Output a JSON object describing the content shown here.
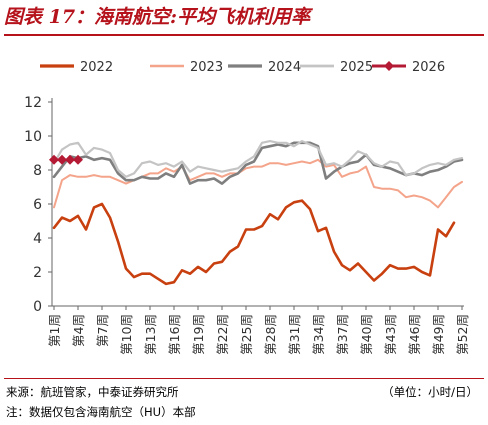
{
  "title": "图表 17：海南航空:平均飞机利用率",
  "source": "来源：航班管家，中泰证券研究所",
  "unit": "（单位：小时/日）",
  "note": "注：数据仅包含海南航空（HU）本部",
  "chart_data": {
    "type": "line",
    "ylim": [
      0,
      12
    ],
    "yticks": [
      0,
      2,
      4,
      6,
      8,
      10,
      12
    ],
    "week_count": 52,
    "xtick_weeks": [
      1,
      4,
      7,
      10,
      13,
      16,
      19,
      22,
      25,
      28,
      31,
      34,
      37,
      40,
      43,
      46,
      49,
      52
    ],
    "xtick_labels": [
      "第1周",
      "第4周",
      "第7周",
      "第10周",
      "第13周",
      "第16周",
      "第19周",
      "第22周",
      "第25周",
      "第28周",
      "第31周",
      "第34周",
      "第37周",
      "第40周",
      "第43周",
      "第46周",
      "第49周",
      "第52周"
    ],
    "legend_position": "top",
    "grid": false,
    "series": [
      {
        "name": "2022",
        "color": "#c8400f",
        "width": 2.6,
        "marker": false,
        "values": [
          4.6,
          5.2,
          5.0,
          5.3,
          4.5,
          5.8,
          6.0,
          5.2,
          3.8,
          2.2,
          1.7,
          1.9,
          1.9,
          1.6,
          1.3,
          1.4,
          2.1,
          1.9,
          2.3,
          2.0,
          2.5,
          2.6,
          3.2,
          3.5,
          4.5,
          4.5,
          4.7,
          5.4,
          5.1,
          5.8,
          6.1,
          6.2,
          5.7,
          4.4,
          4.6,
          3.2,
          2.4,
          2.1,
          2.5,
          2.0,
          1.5,
          1.9,
          2.4,
          2.2,
          2.2,
          2.3,
          2.0,
          1.8,
          4.5,
          4.1,
          4.9,
          null
        ]
      },
      {
        "name": "2023",
        "color": "#f4a48a",
        "width": 2.0,
        "marker": false,
        "values": [
          5.8,
          7.4,
          7.7,
          7.6,
          7.6,
          7.7,
          7.6,
          7.6,
          7.4,
          7.2,
          7.4,
          7.6,
          7.8,
          7.8,
          8.1,
          7.9,
          8.2,
          7.4,
          7.6,
          7.8,
          7.8,
          7.6,
          7.8,
          7.8,
          8.1,
          8.2,
          8.2,
          8.4,
          8.4,
          8.3,
          8.4,
          8.5,
          8.4,
          8.6,
          8.2,
          8.3,
          7.6,
          7.8,
          7.9,
          8.2,
          7.0,
          6.9,
          6.9,
          6.8,
          6.4,
          6.5,
          6.4,
          6.2,
          5.8,
          6.4,
          7.0,
          7.3
        ]
      },
      {
        "name": "2024",
        "color": "#7f7f7f",
        "width": 2.6,
        "marker": false,
        "values": [
          7.6,
          8.2,
          8.8,
          8.7,
          8.8,
          8.6,
          8.7,
          8.6,
          7.8,
          7.4,
          7.4,
          7.6,
          7.5,
          7.5,
          7.8,
          7.6,
          8.3,
          7.2,
          7.4,
          7.4,
          7.5,
          7.2,
          7.6,
          7.8,
          8.3,
          8.5,
          9.3,
          9.4,
          9.5,
          9.4,
          9.6,
          9.6,
          9.6,
          9.4,
          7.5,
          7.9,
          8.2,
          8.4,
          8.5,
          8.9,
          8.3,
          8.2,
          8.1,
          7.9,
          7.7,
          7.8,
          7.7,
          7.9,
          8.0,
          8.2,
          8.5,
          8.6
        ]
      },
      {
        "name": "2025",
        "color": "#c4c4c4",
        "width": 2.2,
        "marker": false,
        "values": [
          8.4,
          9.2,
          9.5,
          9.6,
          8.9,
          9.3,
          9.2,
          9.0,
          8.0,
          7.6,
          7.8,
          8.4,
          8.5,
          8.3,
          8.4,
          8.2,
          8.5,
          7.9,
          8.2,
          8.1,
          8.0,
          7.9,
          8.0,
          8.1,
          8.5,
          8.8,
          9.6,
          9.7,
          9.6,
          9.6,
          9.4,
          9.7,
          9.5,
          9.3,
          8.3,
          8.4,
          8.2,
          8.6,
          9.1,
          8.9,
          8.4,
          8.2,
          8.5,
          8.4,
          7.7,
          7.8,
          8.1,
          8.3,
          8.4,
          8.3,
          8.6,
          8.7
        ]
      },
      {
        "name": "2026",
        "color": "#b51a35",
        "width": 2.4,
        "marker": true,
        "values": [
          8.6,
          8.6,
          8.6,
          8.6,
          null,
          null,
          null,
          null,
          null,
          null,
          null,
          null,
          null,
          null,
          null,
          null,
          null,
          null,
          null,
          null,
          null,
          null,
          null,
          null,
          null,
          null,
          null,
          null,
          null,
          null,
          null,
          null,
          null,
          null,
          null,
          null,
          null,
          null,
          null,
          null,
          null,
          null,
          null,
          null,
          null,
          null,
          null,
          null,
          null,
          null,
          null,
          null
        ]
      }
    ]
  }
}
